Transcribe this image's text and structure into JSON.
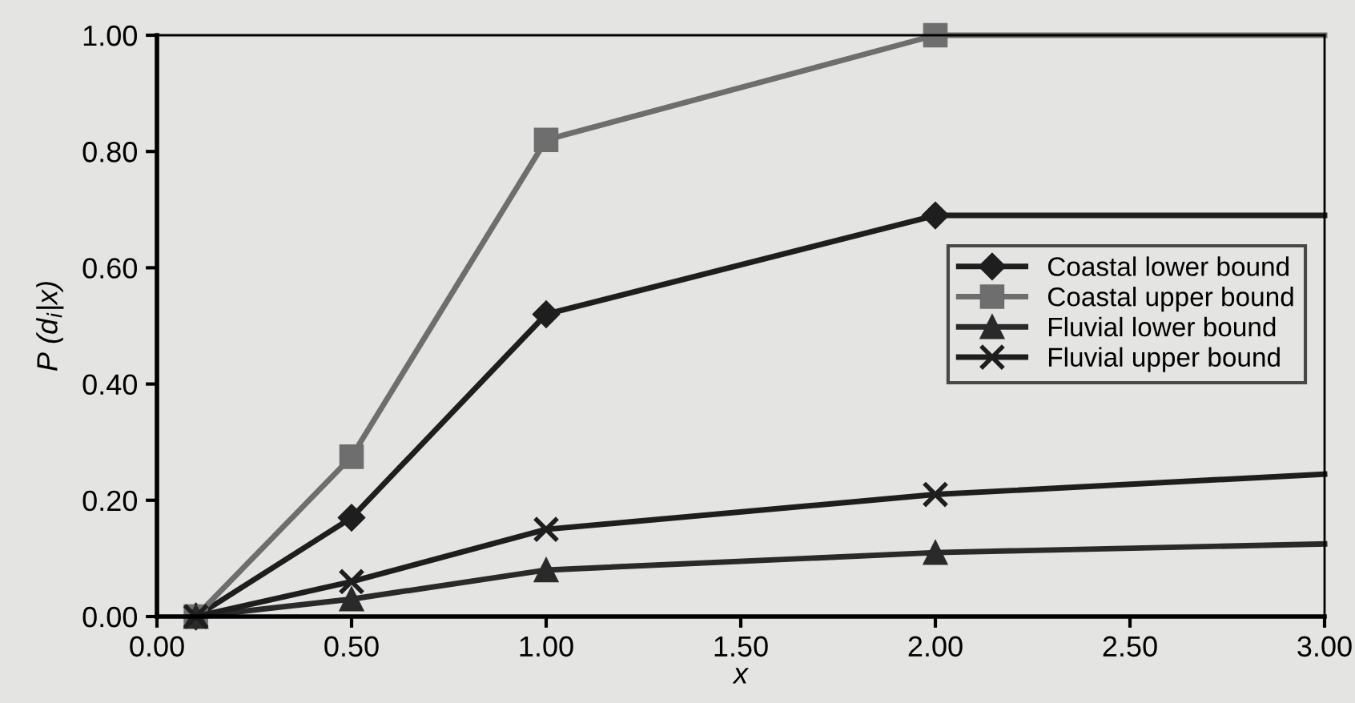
{
  "chart_data": {
    "type": "line",
    "xlabel": "x",
    "ylabel": "P (d$_{i}$|x)",
    "x": [
      0.1,
      0.5,
      1.0,
      2.0,
      3.0
    ],
    "xlim": [
      0,
      3.0
    ],
    "ylim": [
      0,
      1.0
    ],
    "xticks": [
      {
        "value": 0,
        "label": "0.00"
      },
      {
        "value": 0.5,
        "label": "0.50"
      },
      {
        "value": 1.0,
        "label": "1.00"
      },
      {
        "value": 1.5,
        "label": "1.50"
      },
      {
        "value": 2.0,
        "label": "2.00"
      },
      {
        "value": 2.5,
        "label": "2.50"
      },
      {
        "value": 3.0,
        "label": "3.00"
      }
    ],
    "yticks": [
      {
        "value": 0,
        "label": "0.00"
      },
      {
        "value": 0.2,
        "label": "0.20"
      },
      {
        "value": 0.4,
        "label": "0.40"
      },
      {
        "value": 0.6,
        "label": "0.60"
      },
      {
        "value": 0.8,
        "label": "0.80"
      },
      {
        "value": 1.0,
        "label": "1.00"
      }
    ],
    "grid": false,
    "legend": "right",
    "line_style": "solid",
    "series": [
      {
        "name": "Coastal lower bound",
        "color": "#1e1e1e",
        "marker": "diamond",
        "values": [
          0.0,
          0.17,
          0.52,
          0.69,
          0.69
        ]
      },
      {
        "name": "Coastal upper bound",
        "color": "#6e6e6e",
        "marker": "square",
        "values": [
          0.0,
          0.275,
          0.82,
          1.0,
          1.0
        ]
      },
      {
        "name": "Fluvial lower bound",
        "color": "#2a2a2a",
        "marker": "triangle",
        "values": [
          0.0,
          0.03,
          0.08,
          0.11,
          0.125
        ]
      },
      {
        "name": "Fluvial upper bound",
        "color": "#1e1e1e",
        "marker": "cross",
        "values": [
          0.0,
          0.06,
          0.15,
          0.21,
          0.245
        ]
      }
    ]
  }
}
